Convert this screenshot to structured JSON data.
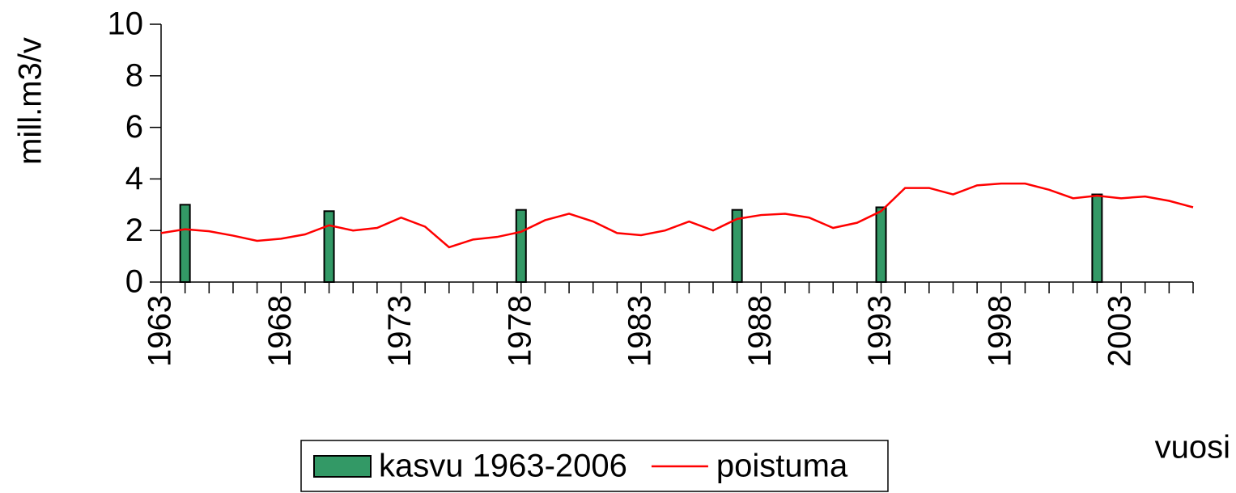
{
  "chart_data": {
    "type": "combo",
    "ylabel": "mill.m3/v",
    "xlabel": "vuosi",
    "xlim": [
      1963,
      2006
    ],
    "xticks": [
      1963,
      1968,
      1973,
      1978,
      1983,
      1988,
      1993,
      1998,
      2003
    ],
    "xminorticks": [
      1963,
      1964,
      1965,
      1966,
      1967,
      1968,
      1969,
      1970,
      1971,
      1972,
      1973,
      1974,
      1975,
      1976,
      1977,
      1978,
      1979,
      1980,
      1981,
      1982,
      1983,
      1984,
      1985,
      1986,
      1987,
      1988,
      1989,
      1990,
      1991,
      1992,
      1993,
      1994,
      1995,
      1996,
      1997,
      1998,
      1999,
      2000,
      2001,
      2002,
      2003,
      2004,
      2005,
      2006
    ],
    "ylim": [
      0,
      10
    ],
    "yticks": [
      0,
      2,
      4,
      6,
      8,
      10
    ],
    "series": [
      {
        "name": "kasvu 1963-2006",
        "type": "bar",
        "color": "#339966",
        "x": [
          1964,
          1970,
          1978,
          1987,
          1993,
          2002
        ],
        "values": [
          3.0,
          2.75,
          2.8,
          2.8,
          2.9,
          3.4
        ]
      },
      {
        "name": "poistuma",
        "type": "line",
        "color": "#ff0000",
        "x": [
          1963,
          1964,
          1965,
          1966,
          1967,
          1968,
          1969,
          1970,
          1971,
          1972,
          1973,
          1974,
          1975,
          1976,
          1977,
          1978,
          1979,
          1980,
          1981,
          1982,
          1983,
          1984,
          1985,
          1986,
          1987,
          1988,
          1989,
          1990,
          1991,
          1992,
          1993,
          1994,
          1995,
          1996,
          1997,
          1998,
          1999,
          2000,
          2001,
          2002,
          2003,
          2004,
          2005,
          2006
        ],
        "values": [
          1.9,
          2.05,
          1.97,
          1.8,
          1.6,
          1.68,
          1.85,
          2.2,
          2.0,
          2.1,
          2.5,
          2.15,
          1.35,
          1.65,
          1.75,
          1.95,
          2.4,
          2.65,
          2.35,
          1.9,
          1.82,
          2.0,
          2.35,
          2.0,
          2.45,
          2.6,
          2.65,
          2.5,
          2.1,
          2.3,
          2.75,
          3.65,
          3.65,
          3.4,
          3.75,
          3.82,
          3.82,
          3.58,
          3.25,
          3.35,
          3.25,
          3.32,
          3.15,
          2.9
        ]
      }
    ]
  }
}
